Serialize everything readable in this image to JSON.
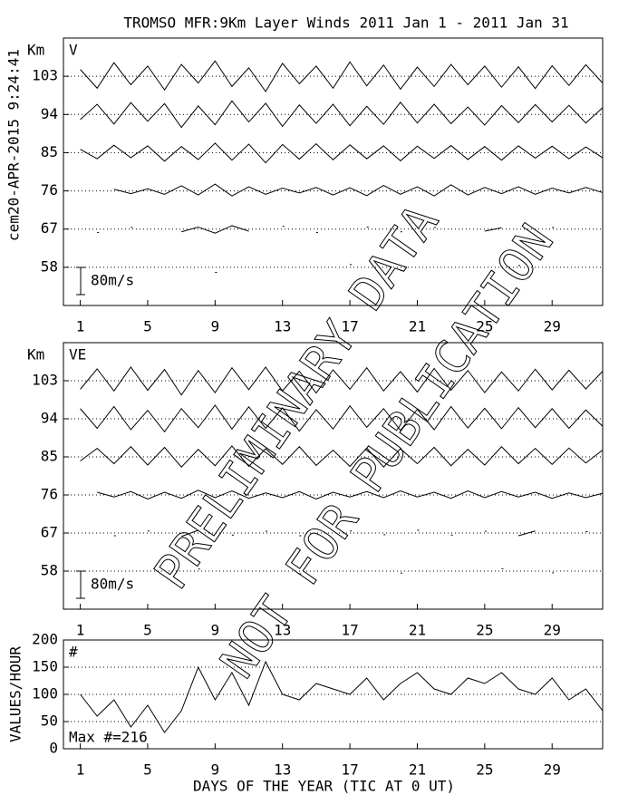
{
  "annotations": {
    "side_text": "cem20-APR-2015  9:24:41",
    "watermark": [
      "PRELIMINARY DATA",
      "NOT FOR PUBLICATION"
    ]
  },
  "chart_data": [
    {
      "type": "wind",
      "title": "TROMSO MFR:9Km Layer Winds 2011 Jan  1 - 2011 Jan 31",
      "ylabel": "Km",
      "panel_label": "V",
      "x": [
        1,
        2,
        3,
        4,
        5,
        6,
        7,
        8,
        9,
        10,
        11,
        12,
        13,
        14,
        15,
        16,
        17,
        18,
        19,
        20,
        21,
        22,
        23,
        24,
        25,
        26,
        27,
        28,
        29,
        30,
        31,
        32
      ],
      "xlim": [
        0,
        32
      ],
      "xticks": [
        1,
        5,
        9,
        13,
        17,
        21,
        25,
        29
      ],
      "ylim": [
        49,
        112
      ],
      "yticks": [
        58,
        67,
        76,
        85,
        94,
        103
      ],
      "scale_bar": {
        "value": 80,
        "label": "80m/s"
      },
      "series": [
        {
          "level": 103,
          "values": [
            20,
            -35,
            40,
            -25,
            30,
            -40,
            35,
            -20,
            45,
            -30,
            25,
            -45,
            38,
            -22,
            30,
            -35,
            42,
            -28,
            33,
            -38,
            27,
            -30,
            35,
            -25,
            30,
            -32,
            28,
            -36,
            31,
            -27,
            34,
            -20
          ]
        },
        {
          "level": 94,
          "values": [
            -15,
            30,
            -28,
            35,
            -20,
            32,
            -38,
            25,
            -30,
            40,
            -22,
            33,
            -35,
            28,
            -26,
            30,
            -33,
            24,
            -29,
            36,
            -25,
            30,
            -27,
            22,
            -31,
            26,
            -24,
            29,
            -22,
            27,
            -25,
            20
          ]
        },
        {
          "level": 85,
          "values": [
            10,
            -18,
            22,
            -15,
            20,
            -25,
            18,
            -20,
            28,
            -22,
            25,
            -30,
            24,
            -19,
            26,
            -21,
            23,
            -18,
            20,
            -24,
            19,
            -17,
            21,
            -20,
            18,
            -22,
            20,
            -16,
            19,
            -18,
            17,
            -15
          ]
        },
        {
          "level": 76,
          "values": [
            null,
            null,
            5,
            -8,
            6,
            -10,
            15,
            -12,
            20,
            -15,
            12,
            -10,
            8,
            -6,
            10,
            -12,
            9,
            -14,
            16,
            -10,
            12,
            -15,
            18,
            -12,
            10,
            -8,
            12,
            -10,
            8,
            -6,
            10,
            -5
          ]
        },
        {
          "level": 67,
          "values": [
            null,
            -10,
            null,
            5,
            null,
            null,
            -8,
            6,
            -12,
            10,
            -6,
            null,
            8,
            null,
            -10,
            null,
            null,
            6,
            null,
            -8,
            null,
            5,
            null,
            null,
            -6,
            4,
            null,
            null,
            5,
            null,
            null,
            null
          ]
        },
        {
          "level": 58,
          "values": [
            null,
            null,
            null,
            null,
            null,
            null,
            null,
            null,
            -15,
            null,
            null,
            null,
            null,
            null,
            null,
            null,
            8,
            null,
            null,
            -10,
            null,
            null,
            null,
            null,
            null,
            null,
            5,
            null,
            null,
            null,
            null,
            null
          ]
        }
      ]
    },
    {
      "type": "wind",
      "ylabel": "Km",
      "panel_label": "VE",
      "x": [
        1,
        2,
        3,
        4,
        5,
        6,
        7,
        8,
        9,
        10,
        11,
        12,
        13,
        14,
        15,
        16,
        17,
        18,
        19,
        20,
        21,
        22,
        23,
        24,
        25,
        26,
        27,
        28,
        29,
        30,
        31,
        32
      ],
      "xlim": [
        0,
        32
      ],
      "xticks": [
        1,
        5,
        9,
        13,
        17,
        21,
        25,
        29
      ],
      "ylim": [
        49,
        112
      ],
      "yticks": [
        58,
        67,
        76,
        85,
        94,
        103
      ],
      "scale_bar": {
        "value": 80,
        "label": "80m/s"
      },
      "series": [
        {
          "level": 103,
          "values": [
            -25,
            35,
            -30,
            40,
            -28,
            33,
            -42,
            30,
            -35,
            38,
            -26,
            40,
            -30,
            28,
            -36,
            32,
            -25,
            38,
            -30,
            27,
            -33,
            36,
            -28,
            30,
            -35,
            26,
            -30,
            34,
            -27,
            31,
            -24,
            28
          ]
        },
        {
          "level": 94,
          "values": [
            30,
            -28,
            36,
            -32,
            25,
            -38,
            30,
            -26,
            40,
            -30,
            35,
            -28,
            32,
            -36,
            27,
            -30,
            38,
            -25,
            30,
            -34,
            28,
            -32,
            36,
            -27,
            31,
            -29,
            33,
            -26,
            30,
            -28,
            26,
            -22
          ]
        },
        {
          "level": 85,
          "values": [
            -12,
            25,
            -20,
            30,
            -24,
            28,
            -30,
            22,
            -26,
            32,
            -28,
            24,
            -22,
            30,
            -25,
            20,
            -28,
            26,
            -30,
            24,
            -20,
            28,
            -26,
            22,
            -24,
            30,
            -20,
            25,
            -22,
            26,
            -18,
            20
          ]
        },
        {
          "level": 76,
          "values": [
            null,
            8,
            -6,
            10,
            -12,
            8,
            -10,
            14,
            -8,
            12,
            -10,
            6,
            -8,
            10,
            -12,
            8,
            -6,
            10,
            -8,
            12,
            -6,
            8,
            -10,
            12,
            -8,
            10,
            -6,
            8,
            -10,
            6,
            -8,
            5
          ]
        },
        {
          "level": 67,
          "values": [
            null,
            null,
            -8,
            null,
            6,
            null,
            -10,
            8,
            null,
            -6,
            null,
            5,
            null,
            -8,
            null,
            null,
            6,
            null,
            -5,
            null,
            8,
            null,
            -6,
            null,
            5,
            null,
            -8,
            6,
            null,
            null,
            4,
            null
          ]
        },
        {
          "level": 58,
          "values": [
            null,
            null,
            null,
            null,
            null,
            null,
            null,
            6,
            null,
            null,
            null,
            null,
            null,
            -8,
            null,
            null,
            null,
            null,
            null,
            -6,
            null,
            null,
            null,
            null,
            null,
            7,
            null,
            null,
            -5,
            null,
            null,
            null
          ]
        }
      ]
    },
    {
      "type": "line",
      "ylabel": "VALUES/HOUR",
      "panel_label": "#",
      "note": "Max #=216",
      "xlabel": "DAYS OF THE YEAR (TIC AT 0 UT)",
      "x": [
        1,
        2,
        3,
        4,
        5,
        6,
        7,
        8,
        9,
        10,
        11,
        12,
        13,
        14,
        15,
        16,
        17,
        18,
        19,
        20,
        21,
        22,
        23,
        24,
        25,
        26,
        27,
        28,
        29,
        30,
        31,
        32
      ],
      "xlim": [
        0,
        32
      ],
      "xticks": [
        1,
        5,
        9,
        13,
        17,
        21,
        25,
        29
      ],
      "ylim": [
        0,
        200
      ],
      "yticks": [
        0,
        50,
        100,
        150,
        200
      ],
      "grid": true,
      "values": [
        100,
        60,
        90,
        40,
        80,
        30,
        70,
        150,
        90,
        140,
        80,
        160,
        100,
        90,
        120,
        110,
        100,
        130,
        90,
        120,
        140,
        110,
        100,
        130,
        120,
        140,
        110,
        100,
        130,
        90,
        110,
        70
      ]
    }
  ]
}
